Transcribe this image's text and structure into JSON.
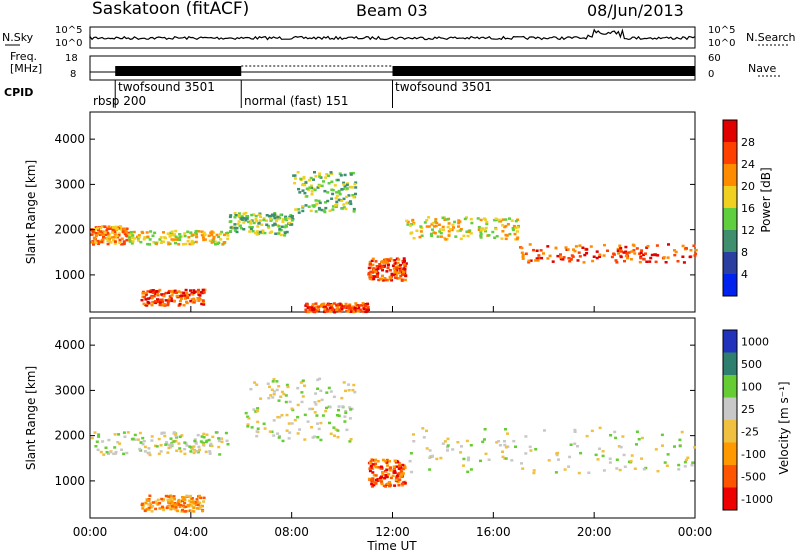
{
  "header": {
    "station": "Saskatoon (fitACF)",
    "beam": "Beam 03",
    "date": "08/Jun/2013"
  },
  "summary_panels": {
    "nsky_label": "N.Sky",
    "nsearch_label": "N.Search",
    "freq_label_line1": "Freq.",
    "freq_label_line2": "[MHz]",
    "nave_label": "Nave",
    "cpid_label": "CPID",
    "noise_ticks": [
      "10^5",
      "10^0"
    ],
    "freq_ticks": [
      "18",
      "8"
    ],
    "nave_ticks": [
      "60",
      "0"
    ]
  },
  "cpid_segments": [
    {
      "label": "rbsp 200",
      "start": 0.0,
      "end": 1.0
    },
    {
      "label": "twofsound 3501",
      "start": 1.0,
      "end": 6.0
    },
    {
      "label": "normal (fast) 151",
      "start": 6.0,
      "end": 12.0
    },
    {
      "label": "twofsound 3501",
      "start": 12.0,
      "end": 24.0
    }
  ],
  "x_axis": {
    "label": "Time UT",
    "ticks": [
      "00:00",
      "04:00",
      "08:00",
      "12:00",
      "16:00",
      "20:00",
      "00:00"
    ],
    "range_hours": [
      0,
      24
    ]
  },
  "power_panel": {
    "ylabel": "Slant Range [km]",
    "yticks": [
      "1000",
      "2000",
      "3000",
      "4000"
    ],
    "colorbar_label": "Power [dB]",
    "colorbar_ticks": [
      "4",
      "8",
      "12",
      "16",
      "20",
      "24",
      "28"
    ],
    "colors": [
      "#0022ee",
      "#2a3f9f",
      "#3f8f6f",
      "#5fcf3f",
      "#f0d020",
      "#ff8c00",
      "#ff4000",
      "#e00000"
    ]
  },
  "velocity_panel": {
    "ylabel": "Slant Range [km]",
    "yticks": [
      "1000",
      "2000",
      "3000",
      "4000"
    ],
    "colorbar_label": "Velocity [m s⁻¹]",
    "colorbar_ticks": [
      "1000",
      "500",
      "100",
      "25",
      "-25",
      "-100",
      "-500",
      "-1000"
    ],
    "colors": [
      "#2233bb",
      "#2f7f6f",
      "#66cc33",
      "#c8c8c8",
      "#f0c040",
      "#ff9900",
      "#ff5500",
      "#ee0000"
    ]
  },
  "chart_data": {
    "type": "heatmap",
    "x_unit": "hours UT",
    "y_unit": "km",
    "ylim": [
      180,
      4600
    ],
    "xlim": [
      0,
      24
    ],
    "power_bands": [
      {
        "t0": 0.0,
        "t1": 1.5,
        "r0": 1700,
        "r1": 2100,
        "level": 5
      },
      {
        "t0": 1.5,
        "t1": 5.5,
        "r0": 1700,
        "r1": 2000,
        "level": 4
      },
      {
        "t0": 2.0,
        "t1": 4.5,
        "r0": 350,
        "r1": 700,
        "level": 6
      },
      {
        "t0": 5.5,
        "t1": 8.0,
        "r0": 1900,
        "r1": 2400,
        "level": 3
      },
      {
        "t0": 8.0,
        "t1": 10.5,
        "r0": 2400,
        "r1": 3300,
        "level": 3
      },
      {
        "t0": 8.5,
        "t1": 11.0,
        "r0": 200,
        "r1": 400,
        "level": 6
      },
      {
        "t0": 11.0,
        "t1": 12.5,
        "r0": 900,
        "r1": 1400,
        "level": 6
      },
      {
        "t0": 12.5,
        "t1": 17.0,
        "r0": 1800,
        "r1": 2300,
        "level": 4
      },
      {
        "t0": 17.0,
        "t1": 24.0,
        "r0": 1300,
        "r1": 1700,
        "level": 6
      }
    ],
    "velocity_bands": [
      {
        "t0": 0.0,
        "t1": 5.5,
        "r0": 1600,
        "r1": 2100,
        "level": 3
      },
      {
        "t0": 2.0,
        "t1": 4.5,
        "r0": 350,
        "r1": 700,
        "level": 5
      },
      {
        "t0": 6.0,
        "t1": 10.5,
        "r0": 1900,
        "r1": 3300,
        "level": 3
      },
      {
        "t0": 11.0,
        "t1": 12.5,
        "r0": 900,
        "r1": 1500,
        "level": 6
      },
      {
        "t0": 12.5,
        "t1": 24.0,
        "r0": 1200,
        "r1": 2200,
        "level": 3
      }
    ]
  }
}
